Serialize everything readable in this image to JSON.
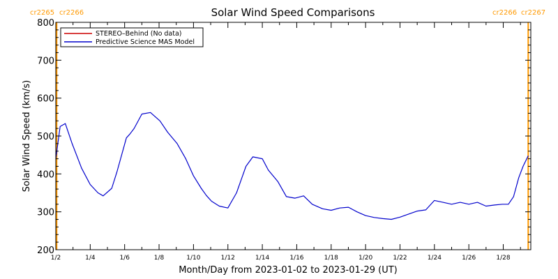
{
  "chart_data": {
    "type": "line",
    "title": "Solar Wind Speed Comparisons",
    "xlabel": "Month/Day from 2023-01-02 to 2023-01-29 (UT)",
    "ylabel": "Solar Wind Speed (km/s)",
    "xlim": [
      0,
      27.6
    ],
    "ylim": [
      200,
      800
    ],
    "x_start_date": "2023-01-02",
    "x_ticks": [
      {
        "x": 0,
        "label": "1/2"
      },
      {
        "x": 2,
        "label": "1/4"
      },
      {
        "x": 4,
        "label": "1/6"
      },
      {
        "x": 6,
        "label": "1/8"
      },
      {
        "x": 8,
        "label": "1/10"
      },
      {
        "x": 10,
        "label": "1/12"
      },
      {
        "x": 12,
        "label": "1/14"
      },
      {
        "x": 14,
        "label": "1/16"
      },
      {
        "x": 16,
        "label": "1/18"
      },
      {
        "x": 18,
        "label": "1/20"
      },
      {
        "x": 20,
        "label": "1/22"
      },
      {
        "x": 22,
        "label": "1/24"
      },
      {
        "x": 24,
        "label": "1/26"
      },
      {
        "x": 26,
        "label": "1/28"
      }
    ],
    "y_ticks": [
      200,
      300,
      400,
      500,
      600,
      700,
      800
    ],
    "carrington_lines": [
      {
        "x": 0.05,
        "left_label": "cr2265",
        "right_label": "cr2266"
      },
      {
        "x": 27.45,
        "left_label": "cr2266",
        "right_label": "cr2267"
      }
    ],
    "legend_position": "top-left",
    "series": [
      {
        "name": "STEREO–Behind (No data)",
        "color": "#cc0000",
        "x": [],
        "y": []
      },
      {
        "name": "Predictive Science MAS Model",
        "color": "#0000cc",
        "x": [
          0,
          0.25,
          0.55,
          0.95,
          1.5,
          2.0,
          2.45,
          2.75,
          3.25,
          3.55,
          4.1,
          4.3,
          4.55,
          5.0,
          5.5,
          6.05,
          6.5,
          7.05,
          7.55,
          8.0,
          8.45,
          8.75,
          9.05,
          9.5,
          10.0,
          10.5,
          11.05,
          11.45,
          12.0,
          12.35,
          12.9,
          13.4,
          13.9,
          14.4,
          14.9,
          15.5,
          16.0,
          16.5,
          17.0,
          17.5,
          18.0,
          18.5,
          19.0,
          19.5,
          20.0,
          20.5,
          21.0,
          21.5,
          22.0,
          22.5,
          23.0,
          23.5,
          24.0,
          24.5,
          25.0,
          25.5,
          25.95,
          26.3,
          26.6,
          26.9,
          27.15,
          27.45
        ],
        "y": [
          440,
          525,
          533,
          480,
          415,
          372,
          350,
          342,
          362,
          405,
          495,
          505,
          520,
          558,
          562,
          540,
          510,
          480,
          440,
          395,
          362,
          343,
          328,
          315,
          310,
          350,
          420,
          445,
          440,
          410,
          380,
          340,
          336,
          342,
          320,
          308,
          304,
          310,
          312,
          300,
          290,
          285,
          282,
          280,
          286,
          294,
          302,
          305,
          330,
          325,
          320,
          325,
          320,
          325,
          315,
          318,
          320,
          320,
          340,
          390,
          420,
          448
        ]
      }
    ]
  }
}
